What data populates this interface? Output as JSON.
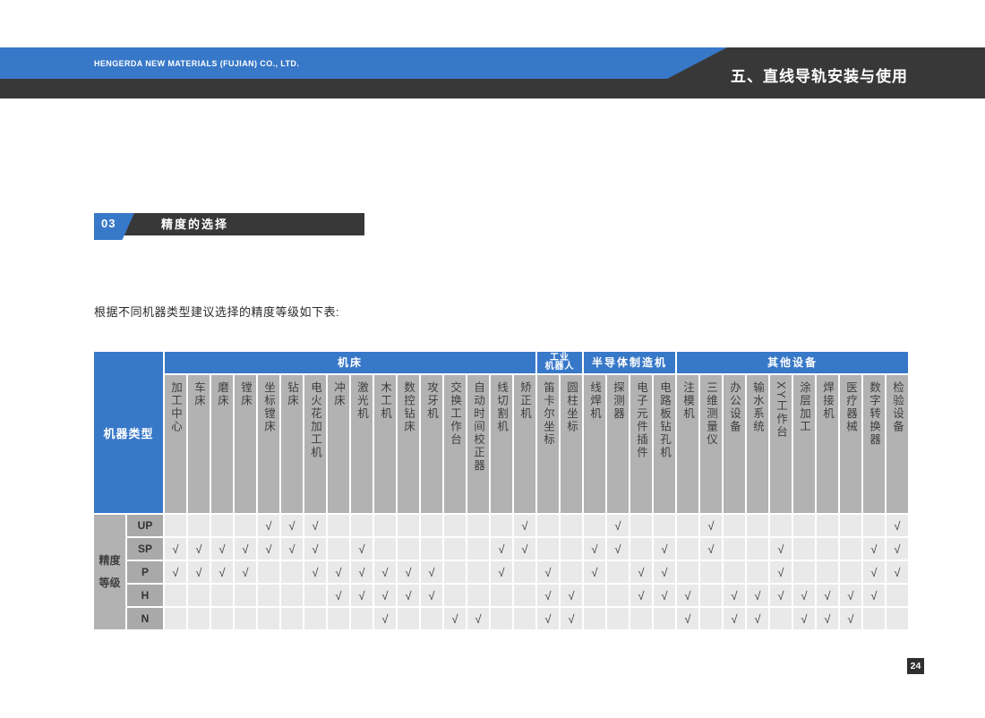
{
  "header": {
    "company": "HENGERDA NEW MATERIALS (FUJIAN) CO., LTD.",
    "chapter_title": "五、直线导轨安装与使用"
  },
  "section": {
    "number": "03",
    "title": "精度的选择"
  },
  "intro_text": "根据不同机器类型建议选择的精度等级如下表:",
  "page_number": "24",
  "colors": {
    "accent_blue": "#3878c8",
    "dark_bar": "#383838",
    "header_gray": "#b2b2b2",
    "row_label_gray": "#a9a9a9",
    "data_cell_gray": "#e9e9e9",
    "check_color": "#3e3e3e"
  },
  "table": {
    "corner_label": "机器类型",
    "row_group_label": "精度\n等级",
    "check_glyph": "√",
    "groups": [
      {
        "label": "机床",
        "span": 16,
        "small": false
      },
      {
        "label": "工业\n机器人",
        "span": 2,
        "small": true
      },
      {
        "label": "半导体制造机",
        "span": 4,
        "small": false
      },
      {
        "label": "其他设备",
        "span": 10,
        "small": false
      }
    ],
    "columns": [
      "加工中心",
      "车床",
      "磨床",
      "镗床",
      "坐标镗床",
      "钻床",
      "电火花加工机",
      "冲床",
      "激光机",
      "木工机",
      "数控钻床",
      "攻牙机",
      "交换工作台",
      "自动时间校正器",
      "线切割机",
      "矫正机",
      "笛卡尔坐标",
      "圆柱坐标",
      "线焊机",
      "探测器",
      "电子元件插件",
      "电路板钻孔机",
      "注模机",
      "三维测量仪",
      "办公设备",
      "输水系统",
      "XY工作台",
      "涂层加工",
      "焊接机",
      "医疗器械",
      "数字转换器",
      "检验设备"
    ],
    "rows": [
      {
        "label": "UP",
        "checks": [
          5,
          6,
          7,
          16,
          20,
          24,
          32
        ]
      },
      {
        "label": "SP",
        "checks": [
          1,
          2,
          3,
          4,
          5,
          6,
          7,
          9,
          15,
          16,
          19,
          20,
          22,
          24,
          27,
          31,
          32
        ]
      },
      {
        "label": "P",
        "checks": [
          1,
          2,
          3,
          4,
          7,
          8,
          9,
          10,
          11,
          12,
          15,
          17,
          19,
          21,
          22,
          27,
          31,
          32
        ]
      },
      {
        "label": "H",
        "checks": [
          8,
          9,
          10,
          11,
          12,
          17,
          18,
          21,
          22,
          23,
          25,
          26,
          27,
          28,
          29,
          30,
          31
        ]
      },
      {
        "label": "N",
        "checks": [
          10,
          13,
          14,
          17,
          18,
          23,
          25,
          26,
          28,
          29,
          30
        ]
      }
    ]
  }
}
